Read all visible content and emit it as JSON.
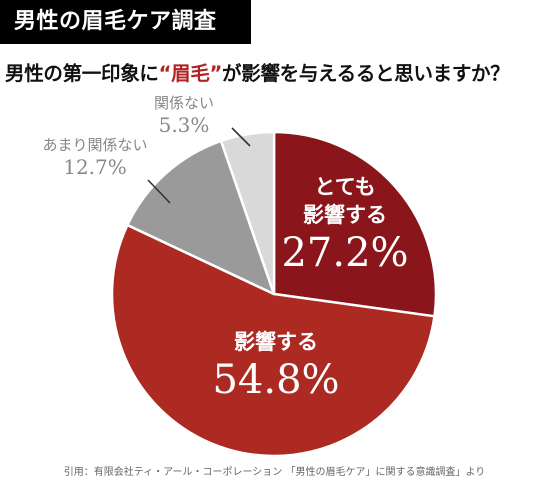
{
  "header": {
    "badge": "男性の眉毛ケア調査",
    "question_before": "男性の第一印象に",
    "question_highlight": "“眉毛”",
    "question_after": "が影響を与えるると思いますか？"
  },
  "chart_data": {
    "type": "pie",
    "title": "男性の第一印象に“眉毛”が影響を与えるると思いますか？",
    "start": "12 o'clock",
    "direction": "clockwise",
    "slices": [
      {
        "label_lines": [
          "とても",
          "影響する"
        ],
        "value": 27.2,
        "value_label": "27.2%",
        "color": "#8a161b"
      },
      {
        "label_lines": [
          "影響する"
        ],
        "value": 54.8,
        "value_label": "54.8%",
        "color": "#ad2a22"
      },
      {
        "label_lines": [
          "あまり関係ない"
        ],
        "value": 12.7,
        "value_label": "12.7%",
        "color": "#9a9a9a"
      },
      {
        "label_lines": [
          "関係ない"
        ],
        "value": 5.3,
        "value_label": "5.3%",
        "color": "#d9d9d9"
      }
    ]
  },
  "footer": {
    "citation": "引用：有限会社ティ・アール・コーポレーション 「男性の眉毛ケア」に関する意識調査」より"
  }
}
